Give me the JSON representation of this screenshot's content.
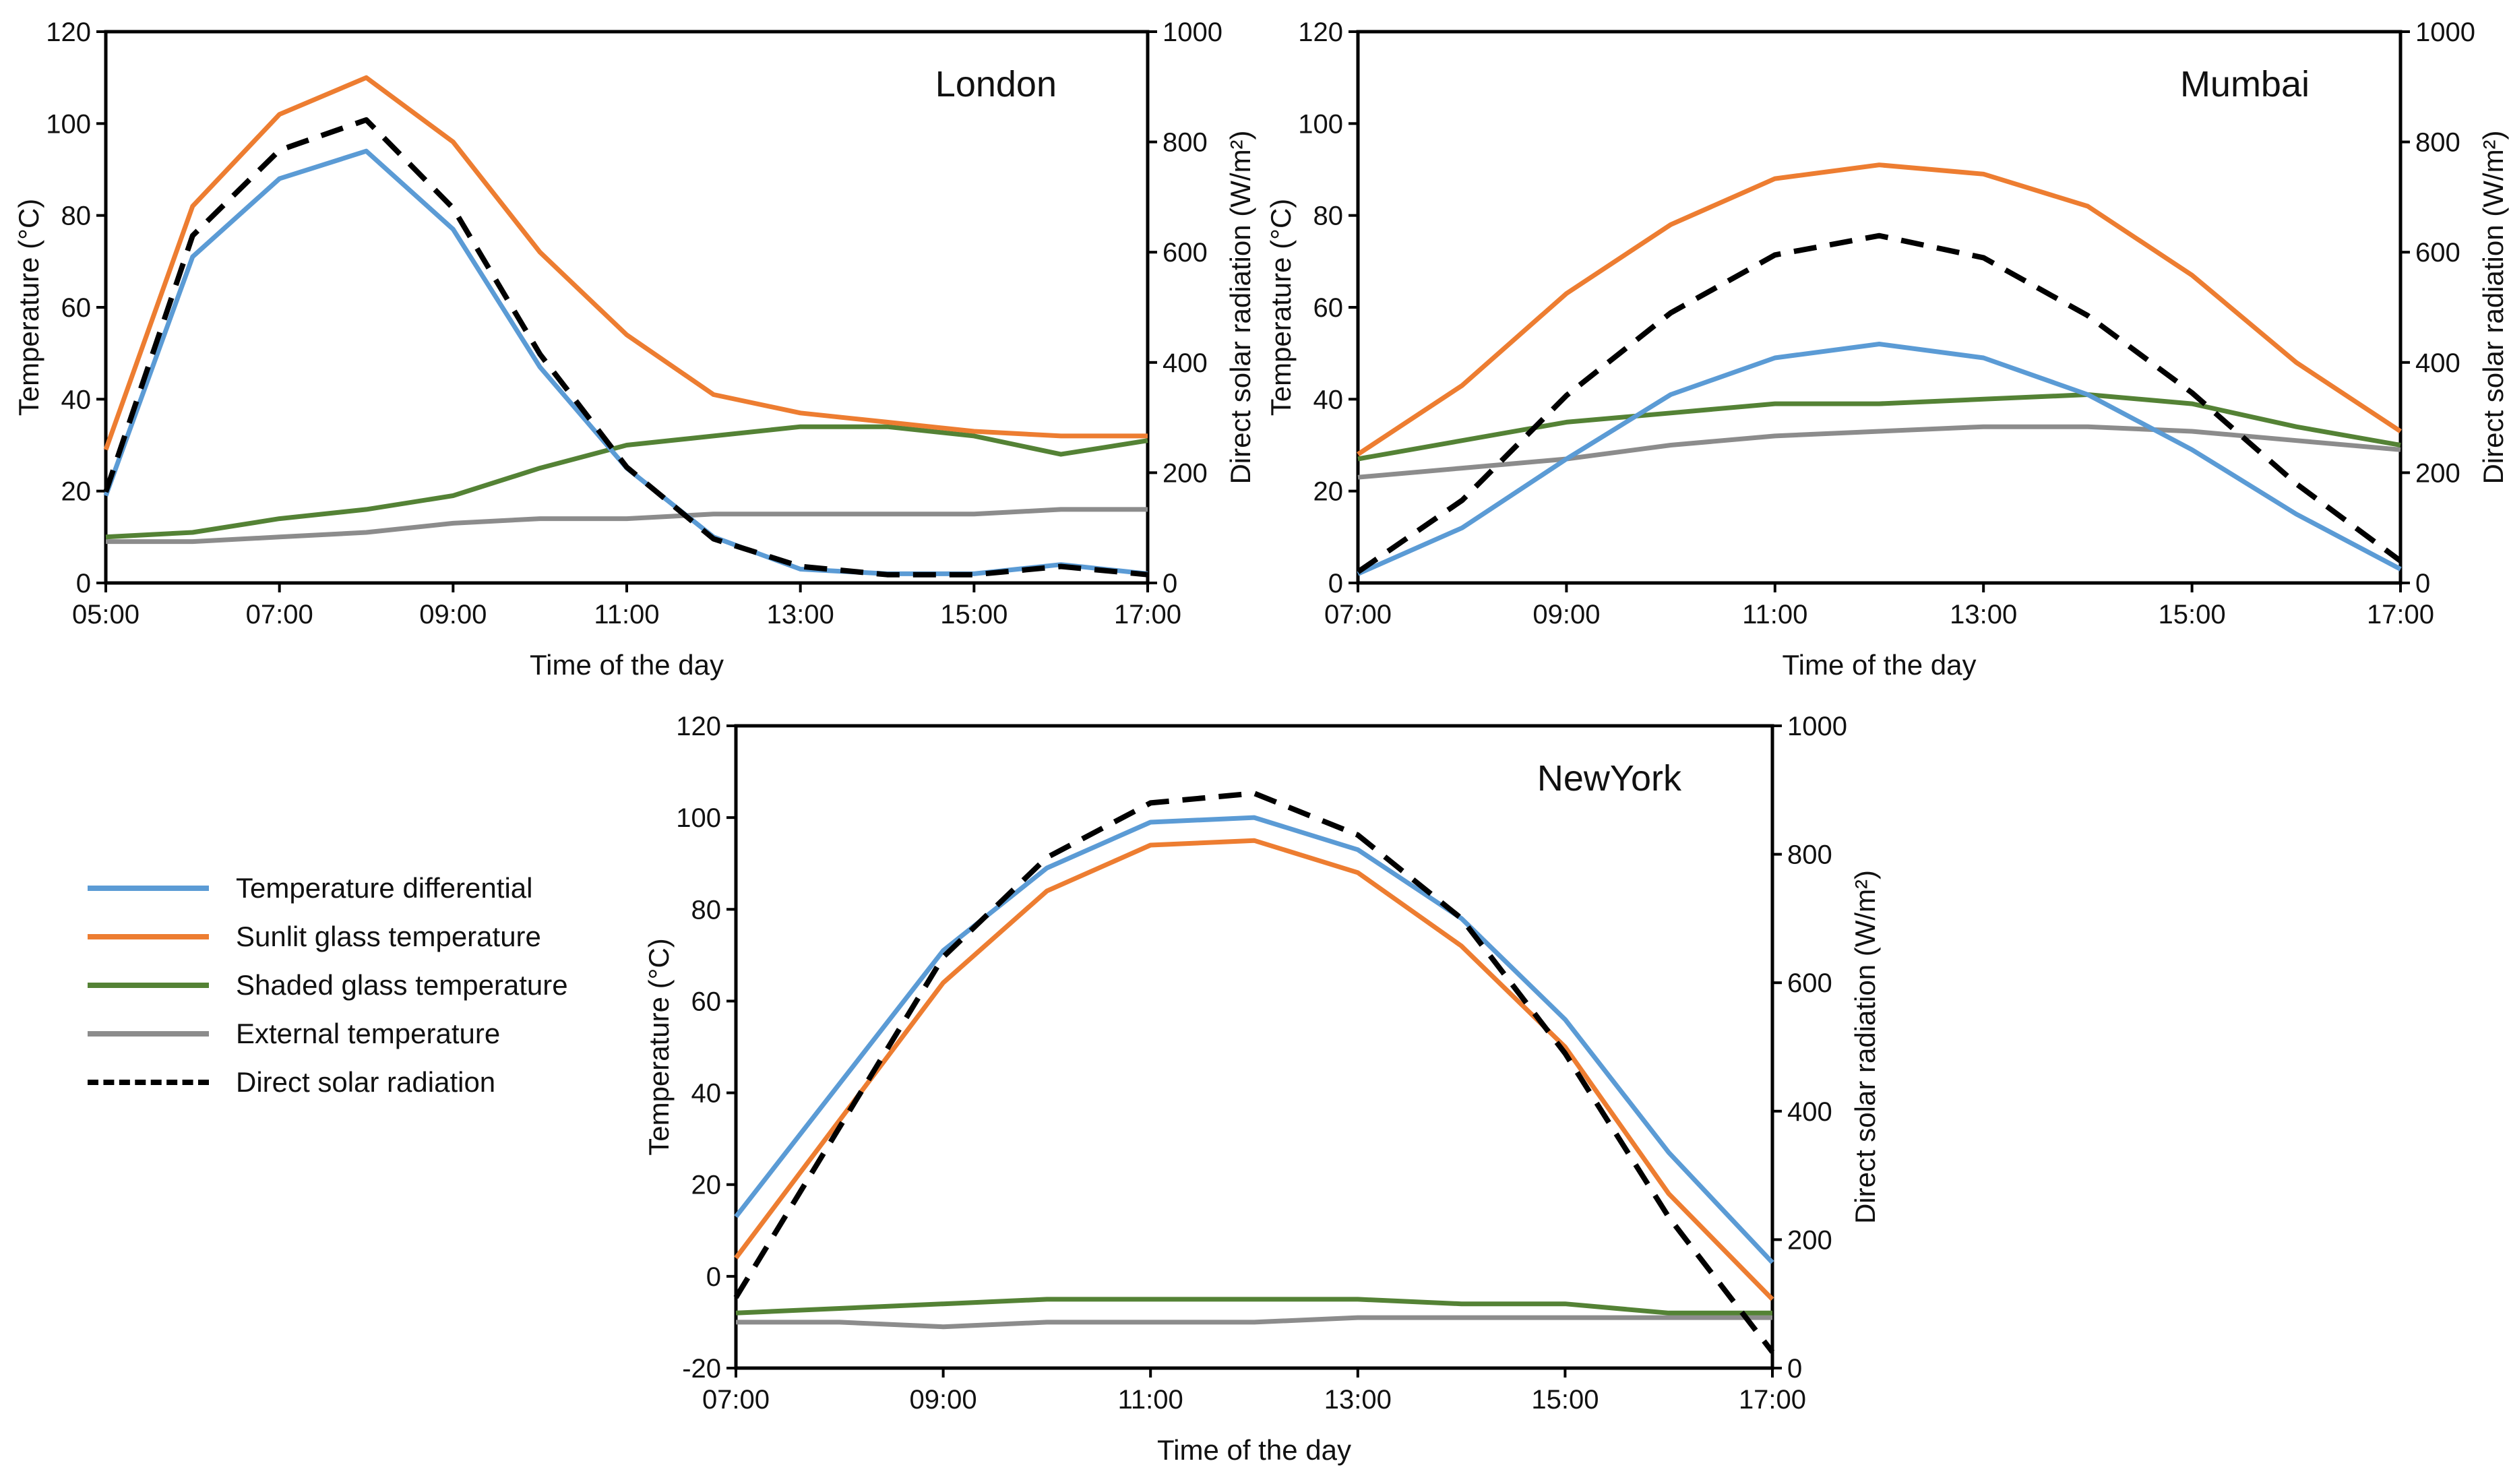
{
  "colors": {
    "differential": "#5b9bd5",
    "sunlit": "#ed7d31",
    "shaded": "#548235",
    "external": "#8c8c8c",
    "solar": "#000000",
    "axis": "#000000",
    "text": "#111111"
  },
  "legend": [
    {
      "key": "differential",
      "label": "Temperature differential",
      "style": "solid"
    },
    {
      "key": "sunlit",
      "label": "Sunlit glass temperature",
      "style": "solid"
    },
    {
      "key": "shaded",
      "label": "Shaded glass temperature",
      "style": "solid"
    },
    {
      "key": "external",
      "label": "External temperature",
      "style": "solid"
    },
    {
      "key": "solar",
      "label": "Direct solar radiation",
      "style": "dashed"
    }
  ],
  "chart_data": [
    {
      "type": "line",
      "title": "London",
      "xlabel": "Time of the day",
      "ylabel": "Temperature (°C)",
      "y2label": "Direct solar radiation (W/m²)",
      "xlim": [
        5,
        17
      ],
      "ylim": [
        0,
        120
      ],
      "y2lim": [
        0,
        1000
      ],
      "xticks": [
        "05:00",
        "07:00",
        "09:00",
        "11:00",
        "13:00",
        "15:00",
        "17:00"
      ],
      "yticks": [
        "0",
        "20",
        "40",
        "60",
        "80",
        "100",
        "120"
      ],
      "y2ticks": [
        "0",
        "200",
        "400",
        "600",
        "800",
        "1000"
      ],
      "x": [
        5,
        6,
        7,
        8,
        9,
        10,
        11,
        12,
        13,
        14,
        15,
        16,
        17
      ],
      "series": [
        {
          "key": "differential",
          "name": "Temperature differential",
          "axis": "left",
          "values": [
            19,
            71,
            88,
            94,
            77,
            47,
            25,
            10,
            3,
            2,
            2,
            4,
            2
          ]
        },
        {
          "key": "sunlit",
          "name": "Sunlit glass temperature",
          "axis": "left",
          "values": [
            29,
            82,
            102,
            110,
            96,
            72,
            54,
            41,
            37,
            35,
            33,
            32,
            32
          ]
        },
        {
          "key": "shaded",
          "name": "Shaded glass temperature",
          "axis": "left",
          "values": [
            10,
            11,
            14,
            16,
            19,
            25,
            30,
            32,
            34,
            34,
            32,
            28,
            31
          ]
        },
        {
          "key": "external",
          "name": "External temperature",
          "axis": "left",
          "values": [
            9,
            9,
            10,
            11,
            13,
            14,
            14,
            15,
            15,
            15,
            15,
            16,
            16
          ]
        },
        {
          "key": "solar",
          "name": "Direct solar radiation",
          "axis": "right",
          "values": [
            165,
            630,
            785,
            840,
            680,
            415,
            210,
            80,
            30,
            15,
            15,
            30,
            15
          ]
        }
      ]
    },
    {
      "type": "line",
      "title": "Mumbai",
      "xlabel": "Time of the day",
      "ylabel": "Temperature (°C)",
      "y2label": "Direct solar radiation (W/m²)",
      "xlim": [
        7,
        17
      ],
      "ylim": [
        0,
        120
      ],
      "y2lim": [
        0,
        1000
      ],
      "xticks": [
        "07:00",
        "09:00",
        "11:00",
        "13:00",
        "15:00",
        "17:00"
      ],
      "yticks": [
        "0",
        "20",
        "40",
        "60",
        "80",
        "100",
        "120"
      ],
      "y2ticks": [
        "0",
        "200",
        "400",
        "600",
        "800",
        "1000"
      ],
      "x": [
        7,
        8,
        9,
        10,
        11,
        12,
        13,
        14,
        15,
        16,
        17
      ],
      "series": [
        {
          "key": "differential",
          "name": "Temperature differential",
          "axis": "left",
          "values": [
            2,
            12,
            27,
            41,
            49,
            52,
            49,
            41,
            29,
            15,
            3
          ]
        },
        {
          "key": "sunlit",
          "name": "Sunlit glass temperature",
          "axis": "left",
          "values": [
            28,
            43,
            63,
            78,
            88,
            91,
            89,
            82,
            67,
            48,
            33
          ]
        },
        {
          "key": "shaded",
          "name": "Shaded glass temperature",
          "axis": "left",
          "values": [
            27,
            31,
            35,
            37,
            39,
            39,
            40,
            41,
            39,
            34,
            30
          ]
        },
        {
          "key": "external",
          "name": "External temperature",
          "axis": "left",
          "values": [
            23,
            25,
            27,
            30,
            32,
            33,
            34,
            34,
            33,
            31,
            29
          ]
        },
        {
          "key": "solar",
          "name": "Direct solar radiation",
          "axis": "right",
          "values": [
            20,
            150,
            340,
            490,
            595,
            630,
            590,
            485,
            345,
            180,
            40
          ]
        }
      ]
    },
    {
      "type": "line",
      "title": "NewYork",
      "xlabel": "Time of the day",
      "ylabel": "Temperature (°C)",
      "y2label": "Direct solar radiation (W/m²)",
      "xlim": [
        7,
        17
      ],
      "ylim": [
        -20,
        120
      ],
      "y2lim": [
        0,
        1000
      ],
      "xticks": [
        "07:00",
        "09:00",
        "11:00",
        "13:00",
        "15:00",
        "17:00"
      ],
      "yticks": [
        "-20",
        "0",
        "20",
        "40",
        "60",
        "80",
        "100",
        "120"
      ],
      "y2ticks": [
        "0",
        "200",
        "400",
        "600",
        "800",
        "1000"
      ],
      "x": [
        7,
        8,
        9,
        10,
        11,
        12,
        13,
        14,
        15,
        16,
        17
      ],
      "series": [
        {
          "key": "differential",
          "name": "Temperature differential",
          "axis": "left",
          "values": [
            13,
            42,
            71,
            89,
            99,
            100,
            93,
            78,
            56,
            27,
            3
          ]
        },
        {
          "key": "sunlit",
          "name": "Sunlit glass temperature",
          "axis": "left",
          "values": [
            4,
            34,
            64,
            84,
            94,
            95,
            88,
            72,
            50,
            18,
            -5
          ]
        },
        {
          "key": "shaded",
          "name": "Shaded glass temperature",
          "axis": "left",
          "values": [
            -8,
            -7,
            -6,
            -5,
            -5,
            -5,
            -5,
            -6,
            -6,
            -8,
            -8
          ]
        },
        {
          "key": "external",
          "name": "External temperature",
          "axis": "left",
          "values": [
            -10,
            -10,
            -11,
            -10,
            -10,
            -10,
            -9,
            -9,
            -9,
            -9,
            -9
          ]
        },
        {
          "key": "solar",
          "name": "Direct solar radiation",
          "axis": "right",
          "values": [
            110,
            375,
            640,
            795,
            880,
            895,
            830,
            700,
            490,
            235,
            25
          ]
        }
      ]
    }
  ]
}
